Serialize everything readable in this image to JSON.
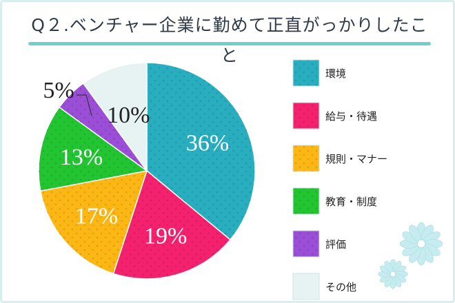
{
  "title": "Q２.ベンチャー企業に勤めて正直がっかりしたこと",
  "chart_data": {
    "type": "pie",
    "slices": [
      {
        "label": "環境",
        "value": 36,
        "display": "36%",
        "color": "#29aebf"
      },
      {
        "label": "給与・待遇",
        "value": 19,
        "display": "19%",
        "color": "#f4226e"
      },
      {
        "label": "規則・マナー",
        "value": 17,
        "display": "17%",
        "color": "#fdb714"
      },
      {
        "label": "教育・制度",
        "value": 13,
        "display": "13%",
        "color": "#22c531"
      },
      {
        "label": "評価",
        "value": 5,
        "display": "5%",
        "color": "#9b4fd7"
      },
      {
        "label": "その他",
        "value": 10,
        "display": "10%",
        "color": "#e6f3f2"
      }
    ],
    "legend_position": "right",
    "start_angle": "12 o'clock",
    "direction": "clockwise"
  }
}
